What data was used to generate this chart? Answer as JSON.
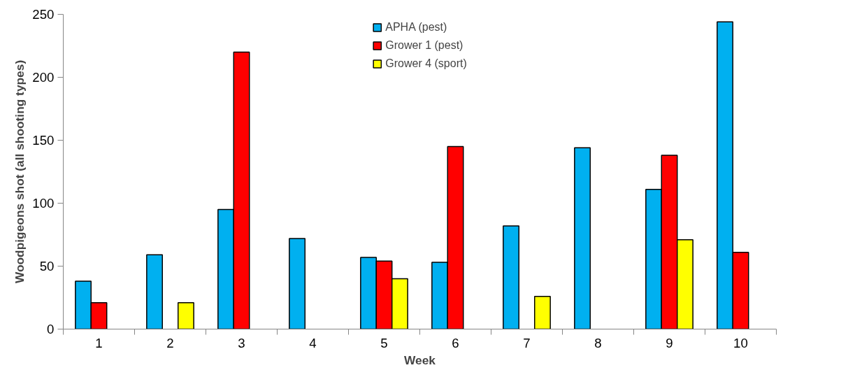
{
  "chart_data": {
    "type": "bar",
    "xlabel": "Week",
    "ylabel": "Woodpigeons shot (all shooting types)",
    "categories": [
      "1",
      "2",
      "3",
      "4",
      "5",
      "6",
      "7",
      "8",
      "9",
      "10"
    ],
    "series": [
      {
        "name": "APHA (pest)",
        "color": "#00b0f0",
        "values": [
          38,
          59,
          95,
          72,
          57,
          53,
          82,
          144,
          111,
          244
        ]
      },
      {
        "name": "Grower 1 (pest)",
        "color": "#ff0000",
        "values": [
          21,
          null,
          220,
          null,
          54,
          145,
          null,
          null,
          138,
          61
        ]
      },
      {
        "name": "Grower 4 (sport)",
        "color": "#ffff00",
        "values": [
          null,
          21,
          null,
          null,
          40,
          null,
          26,
          null,
          71,
          null
        ]
      }
    ],
    "ylim": [
      0,
      250
    ],
    "yticks": [
      0,
      50,
      100,
      150,
      200,
      250
    ],
    "grid": false,
    "legend": "top"
  }
}
